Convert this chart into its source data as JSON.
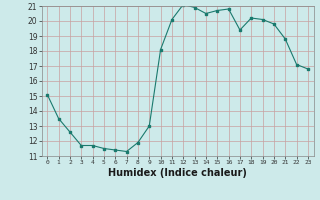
{
  "x": [
    0,
    1,
    2,
    3,
    4,
    5,
    6,
    7,
    8,
    9,
    10,
    11,
    12,
    13,
    14,
    15,
    16,
    17,
    18,
    19,
    20,
    21,
    22,
    23
  ],
  "y": [
    15.1,
    13.5,
    12.6,
    11.7,
    11.7,
    11.5,
    11.4,
    11.3,
    11.9,
    13.0,
    18.1,
    20.1,
    21.1,
    20.9,
    20.5,
    20.7,
    20.8,
    19.4,
    20.2,
    20.1,
    19.8,
    18.8,
    17.1,
    16.8
  ],
  "line_color": "#1a7a6e",
  "marker": "s",
  "marker_size": 2.0,
  "bg_color": "#cdeaea",
  "grid_color": "#b8d8d8",
  "xlabel": "Humidex (Indice chaleur)",
  "ylim": [
    11,
    21
  ],
  "xlim": [
    -0.5,
    23.5
  ],
  "yticks": [
    11,
    12,
    13,
    14,
    15,
    16,
    17,
    18,
    19,
    20,
    21
  ],
  "xticks": [
    0,
    1,
    2,
    3,
    4,
    5,
    6,
    7,
    8,
    9,
    10,
    11,
    12,
    13,
    14,
    15,
    16,
    17,
    18,
    19,
    20,
    21,
    22,
    23
  ],
  "xlabel_fontsize": 7,
  "xtick_fontsize": 4.5,
  "ytick_fontsize": 5.5
}
